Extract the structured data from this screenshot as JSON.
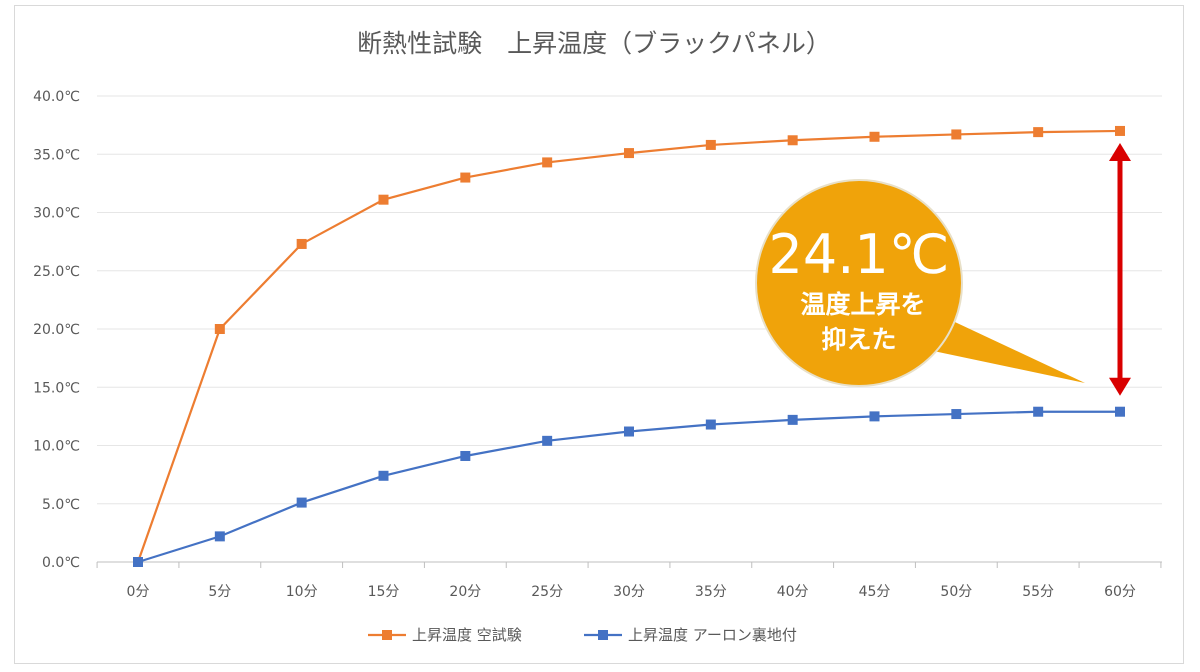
{
  "chart_data": {
    "type": "line",
    "title": "断熱性試験　上昇温度（ブラックパネル）",
    "categories": [
      "0分",
      "5分",
      "10分",
      "15分",
      "20分",
      "25分",
      "30分",
      "35分",
      "40分",
      "45分",
      "50分",
      "55分",
      "60分"
    ],
    "series": [
      {
        "name": "上昇温度 空試験",
        "color": "#ed7d31",
        "values": [
          0,
          20.0,
          27.3,
          31.1,
          33.0,
          34.3,
          35.1,
          35.8,
          36.2,
          36.5,
          36.7,
          36.9,
          37.0
        ]
      },
      {
        "name": "上昇温度 アーロン裏地付",
        "color": "#4472c4",
        "values": [
          0,
          2.2,
          5.1,
          7.4,
          9.1,
          10.4,
          11.2,
          11.8,
          12.2,
          12.5,
          12.7,
          12.9,
          12.9
        ]
      }
    ],
    "ylim": [
      0,
      40
    ],
    "yticks": [
      "0.0℃",
      "5.0℃",
      "10.0℃",
      "15.0℃",
      "20.0℃",
      "25.0℃",
      "30.0℃",
      "35.0℃",
      "40.0℃"
    ],
    "grid": true,
    "legend_position": "bottom",
    "annotation": {
      "value": "24.1℃",
      "text_line1": "温度上昇を",
      "text_line2": "抑えた",
      "bubble_color": "#f0a30a",
      "arrow_color": "#d90000"
    }
  }
}
